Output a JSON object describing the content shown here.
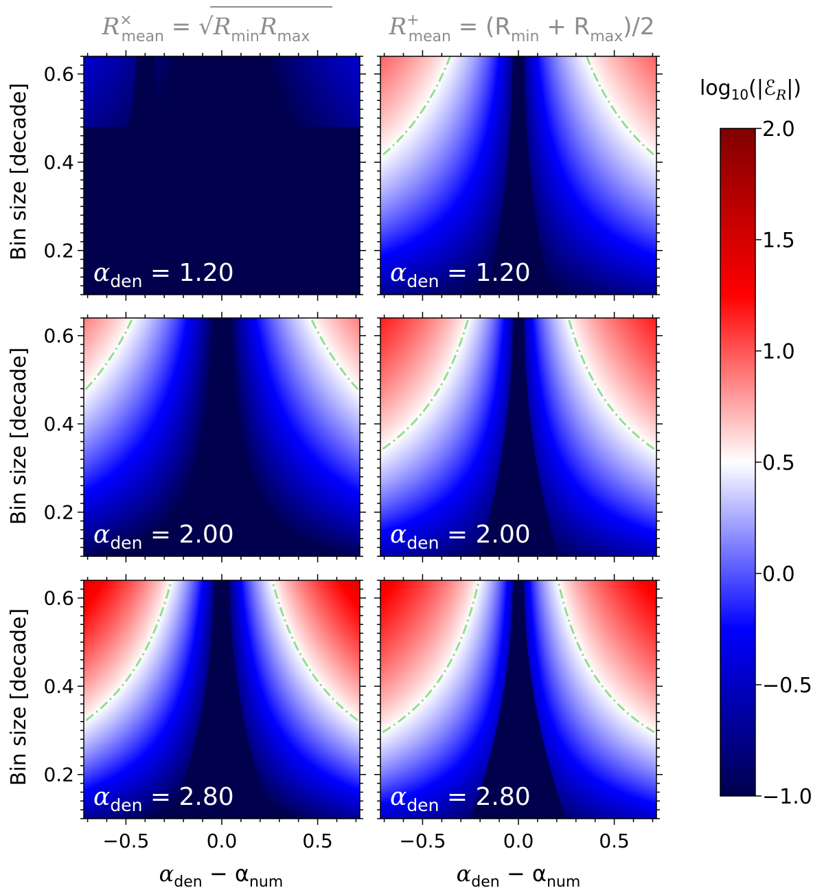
{
  "chart_data": {
    "type": "heatmap",
    "column_titles": [
      {
        "main": "R",
        "sup": "×",
        "sub": "mean",
        "rhs": " = √",
        "rhs_rad": "R",
        "rhs_r1": "min",
        "rhs_rad2": "R",
        "rhs_r2": "max"
      },
      {
        "main": "R",
        "sup": "+",
        "sub": "mean",
        "rhs": " = (R",
        "rhs_r1": "min",
        "rhs_mid": " + R",
        "rhs_r2": "max",
        "rhs_end": ")/2"
      }
    ],
    "xlabel": {
      "a": "α",
      "sub1": "den",
      "minus": " − α",
      "sub2": "num"
    },
    "ylabel": "Bin size [decade]",
    "xlim": [
      -0.72,
      0.72
    ],
    "ylim": [
      0.1,
      0.64
    ],
    "x_ticks": [
      -0.5,
      0.0,
      0.5
    ],
    "x_tick_labels": [
      "−0.5",
      "0.0",
      "0.5"
    ],
    "y_ticks": [
      0.2,
      0.4,
      0.6
    ],
    "y_tick_labels": [
      "0.2",
      "0.4",
      "0.6"
    ],
    "alpha_den_values": [
      1.2,
      2.0,
      2.8
    ],
    "panel_labels": [
      {
        "a": "α",
        "sub": "den",
        "eq": " = 1.20"
      },
      {
        "a": "α",
        "sub": "den",
        "eq": " = 2.00"
      },
      {
        "a": "α",
        "sub": "den",
        "eq": " = 2.80"
      }
    ],
    "colorbar": {
      "label_prefix": "log",
      "label_base": "10",
      "label_body": "(|ℰ",
      "label_sub": "R",
      "label_end": "|)",
      "range": [
        -1.0,
        2.0
      ],
      "ticks": [
        -1.0,
        -0.5,
        0.0,
        0.5,
        1.0,
        1.5,
        2.0
      ],
      "tick_labels": [
        "−1.0",
        "−0.5",
        "0.0",
        "0.5",
        "1.0",
        "1.5",
        "2.0"
      ],
      "colormap": "seismic"
    },
    "contour_level": 0.5,
    "contour_color": "#90e090"
  }
}
